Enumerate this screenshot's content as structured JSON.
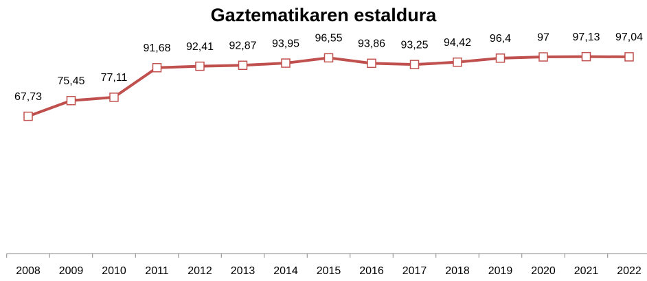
{
  "chart_data": {
    "type": "line",
    "title": "Gaztematikaren estaldura",
    "categories": [
      "2008",
      "2009",
      "2010",
      "2011",
      "2012",
      "2013",
      "2014",
      "2015",
      "2016",
      "2017",
      "2018",
      "2019",
      "2020",
      "2021",
      "2022"
    ],
    "values": [
      67.73,
      75.45,
      77.11,
      91.68,
      92.41,
      92.87,
      93.95,
      96.55,
      93.86,
      93.25,
      94.42,
      96.4,
      97,
      97.13,
      97.04
    ],
    "value_labels": [
      "67,73",
      "75,45",
      "77,11",
      "91,68",
      "92,41",
      "92,87",
      "93,95",
      "96,55",
      "93,86",
      "93,25",
      "94,42",
      "96,4",
      "97",
      "97,13",
      "97,04"
    ],
    "color": "#c0504d",
    "ylim": [
      0,
      120
    ]
  }
}
